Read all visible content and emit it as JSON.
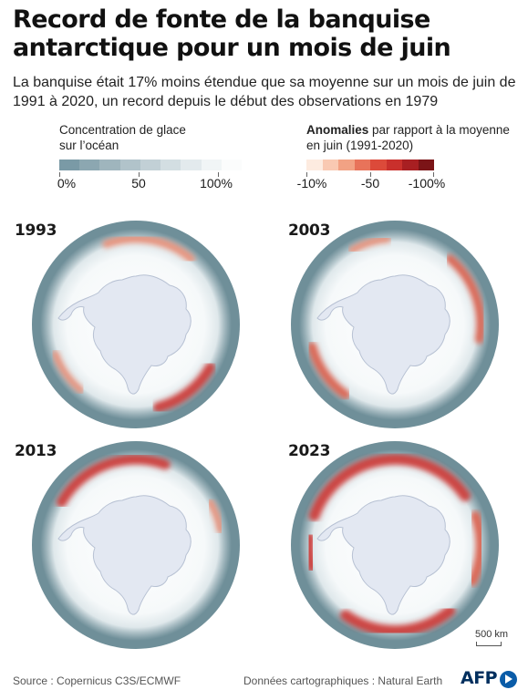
{
  "title": "Record de fonte de la banquise antarctique pour un mois de juin",
  "subtitle": "La banquise était 17% moins étendue que sa moyenne sur un mois de juin de 1991 à 2020, un record depuis le début des observations en 1979",
  "legend_concentration": {
    "title": "Concentration de glace sur l’océan",
    "labels": [
      "0%",
      "50",
      "100%"
    ],
    "colors": [
      "#7a9aa6",
      "#8ca7b1",
      "#9fb5bd",
      "#b1c3ca",
      "#c2d0d6",
      "#d3dee2",
      "#e3eaed",
      "#f1f5f6",
      "#fbfcfc"
    ]
  },
  "legend_anomalies": {
    "title_bold": "Anomalies",
    "title_rest": " par rapport à la moyenne en juin (1991-2020)",
    "labels": [
      "-10%",
      "-50",
      "-100%"
    ],
    "colors": [
      "#fdebe0",
      "#f9c9b2",
      "#f2a284",
      "#e8735a",
      "#dc4a3a",
      "#c9302c",
      "#a81f22",
      "#7b1417"
    ]
  },
  "maps": [
    {
      "year": "1993",
      "anomaly_arcs": [
        {
          "start": 340,
          "end": 40,
          "strength": 0.5
        },
        {
          "start": 120,
          "end": 165,
          "strength": 0.85
        },
        {
          "start": 220,
          "end": 250,
          "strength": 0.3
        }
      ]
    },
    {
      "year": "2003",
      "anomaly_arcs": [
        {
          "start": 40,
          "end": 100,
          "strength": 0.6
        },
        {
          "start": 215,
          "end": 255,
          "strength": 0.7
        },
        {
          "start": 330,
          "end": 355,
          "strength": 0.35
        }
      ]
    },
    {
      "year": "2013",
      "anomaly_arcs": [
        {
          "start": 300,
          "end": 20,
          "strength": 0.85
        },
        {
          "start": 60,
          "end": 80,
          "strength": 0.3
        }
      ]
    },
    {
      "year": "2023",
      "anomaly_arcs": [
        {
          "start": 290,
          "end": 55,
          "strength": 1.0
        },
        {
          "start": 70,
          "end": 115,
          "strength": 0.8
        },
        {
          "start": 140,
          "end": 215,
          "strength": 1.0
        },
        {
          "start": 255,
          "end": 275,
          "strength": 0.9
        }
      ]
    }
  ],
  "scale_label": "500 km",
  "source": "Source : Copernicus C3S/ECMWF",
  "credit": "Données cartographiques : Natural Earth",
  "agency": "AFP"
}
